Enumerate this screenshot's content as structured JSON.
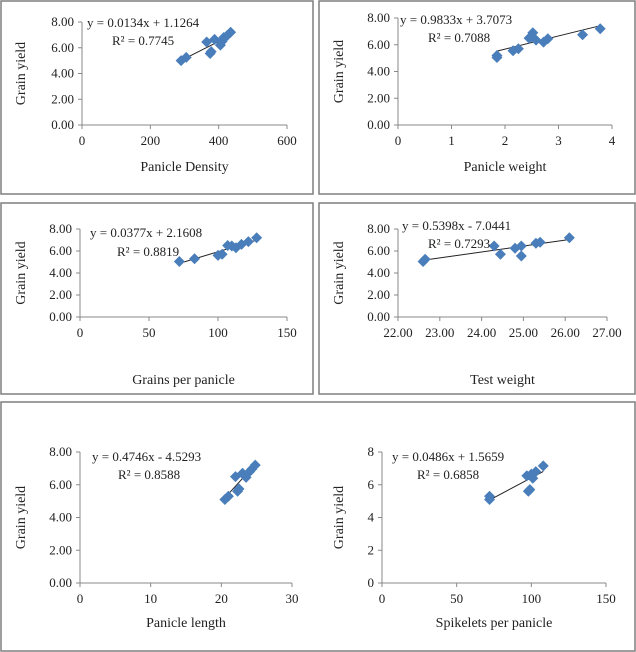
{
  "chart_data": [
    {
      "type": "scatter",
      "xlabel": "Panicle Density",
      "ylabel": "Grain yield",
      "xlim": [
        0,
        600
      ],
      "ylim": [
        0,
        8
      ],
      "xticks": [
        "0",
        "200",
        "400",
        "600"
      ],
      "yticks": [
        "0.00",
        "2.00",
        "4.00",
        "6.00",
        "8.00"
      ],
      "equation": "y = 0.0134x + 1.1264",
      "r2": "R² = 0.7745",
      "slope": 0.0134,
      "intercept": 1.1264,
      "points": [
        [
          290,
          5.0
        ],
        [
          305,
          5.25
        ],
        [
          365,
          6.45
        ],
        [
          375,
          5.55
        ],
        [
          378,
          5.7
        ],
        [
          388,
          6.65
        ],
        [
          405,
          6.2
        ],
        [
          410,
          6.5
        ],
        [
          415,
          6.8
        ],
        [
          425,
          6.95
        ],
        [
          435,
          7.2
        ]
      ]
    },
    {
      "type": "scatter",
      "xlabel": "Panicle weight",
      "ylabel": "Grain yield",
      "xlim": [
        0,
        4
      ],
      "ylim": [
        0,
        8
      ],
      "xticks": [
        "0",
        "1",
        "2",
        "3",
        "4"
      ],
      "yticks": [
        "0.00",
        "2.00",
        "4.00",
        "6.00",
        "8.00"
      ],
      "equation": "y = 0.9833x + 3.7073",
      "r2": "R² = 0.7088",
      "slope": 0.9833,
      "intercept": 3.7073,
      "points": [
        [
          1.85,
          5.2
        ],
        [
          1.85,
          5.05
        ],
        [
          2.15,
          5.55
        ],
        [
          2.25,
          5.7
        ],
        [
          2.45,
          6.5
        ],
        [
          2.5,
          6.6
        ],
        [
          2.52,
          6.9
        ],
        [
          2.58,
          6.35
        ],
        [
          2.72,
          6.2
        ],
        [
          2.8,
          6.45
        ],
        [
          3.45,
          6.75
        ],
        [
          3.78,
          7.2
        ]
      ]
    },
    {
      "type": "scatter",
      "xlabel": "Grains per panicle",
      "ylabel": "Grain yield",
      "xlim": [
        0,
        150
      ],
      "ylim": [
        0,
        8
      ],
      "xticks": [
        "0",
        "50",
        "100",
        "150"
      ],
      "yticks": [
        "0.00",
        "2.00",
        "4.00",
        "6.00",
        "8.00"
      ],
      "equation": "y = 0.0377x + 2.1608",
      "r2": "R² = 0.8819",
      "slope": 0.0377,
      "intercept": 2.1608,
      "points": [
        [
          72,
          5.05
        ],
        [
          83,
          5.3
        ],
        [
          100,
          5.6
        ],
        [
          103,
          5.7
        ],
        [
          107,
          6.5
        ],
        [
          110,
          6.45
        ],
        [
          113,
          6.3
        ],
        [
          117,
          6.6
        ],
        [
          122,
          6.85
        ],
        [
          128,
          7.2
        ]
      ]
    },
    {
      "type": "scatter",
      "xlabel": "Test weight",
      "ylabel": "Grain yield",
      "xlim": [
        22,
        27
      ],
      "ylim": [
        0,
        8
      ],
      "xticks": [
        "22.00",
        "23.00",
        "24.00",
        "25.00",
        "26.00",
        "27.00"
      ],
      "yticks": [
        "0.00",
        "2.00",
        "4.00",
        "6.00",
        "8.00"
      ],
      "equation": "y = 0.5398x - 7.0441",
      "r2": "R² = 0.7293",
      "slope": 0.5398,
      "intercept": -7.0441,
      "points": [
        [
          22.6,
          5.05
        ],
        [
          22.65,
          5.25
        ],
        [
          24.3,
          6.45
        ],
        [
          24.45,
          5.7
        ],
        [
          24.8,
          6.25
        ],
        [
          24.95,
          5.55
        ],
        [
          24.95,
          6.45
        ],
        [
          25.3,
          6.7
        ],
        [
          25.4,
          6.8
        ],
        [
          26.1,
          7.2
        ]
      ]
    },
    {
      "type": "scatter",
      "xlabel": "Panicle length",
      "ylabel": "Grain yield",
      "xlim": [
        0,
        30
      ],
      "ylim": [
        0,
        8
      ],
      "xticks": [
        "0",
        "10",
        "20",
        "30"
      ],
      "yticks": [
        "0.00",
        "2.00",
        "4.00",
        "6.00",
        "8.00"
      ],
      "equation": "y = 0.4746x - 4.5293",
      "r2": "R² = 0.8588",
      "slope": 0.4746,
      "intercept": -4.5293,
      "points": [
        [
          20.5,
          5.1
        ],
        [
          21,
          5.3
        ],
        [
          22,
          6.5
        ],
        [
          22.3,
          5.6
        ],
        [
          22.5,
          5.75
        ],
        [
          23,
          6.7
        ],
        [
          23.5,
          6.45
        ],
        [
          24,
          6.8
        ],
        [
          24.3,
          6.95
        ],
        [
          24.8,
          7.2
        ]
      ]
    },
    {
      "type": "scatter",
      "xlabel": "Spikelets per panicle",
      "ylabel": "Grain yield",
      "xlim": [
        0,
        150
      ],
      "ylim": [
        0,
        8
      ],
      "xticks": [
        "0",
        "50",
        "100",
        "150"
      ],
      "yticks": [
        "0",
        "2",
        "4",
        "6",
        "8"
      ],
      "equation": "y = 0.0486x + 1.5659",
      "r2": "R² = 0.6858",
      "slope": 0.0486,
      "intercept": 1.5659,
      "points": [
        [
          72,
          5.1
        ],
        [
          72,
          5.3
        ],
        [
          97,
          6.55
        ],
        [
          98,
          5.6
        ],
        [
          99,
          5.7
        ],
        [
          100,
          6.65
        ],
        [
          101,
          6.4
        ],
        [
          103,
          6.8
        ],
        [
          108,
          7.15
        ]
      ]
    }
  ],
  "colors": {
    "marker": "#4a7ebb",
    "trend": "#222222",
    "axis": "#888888",
    "border": "#7f7f7f"
  }
}
